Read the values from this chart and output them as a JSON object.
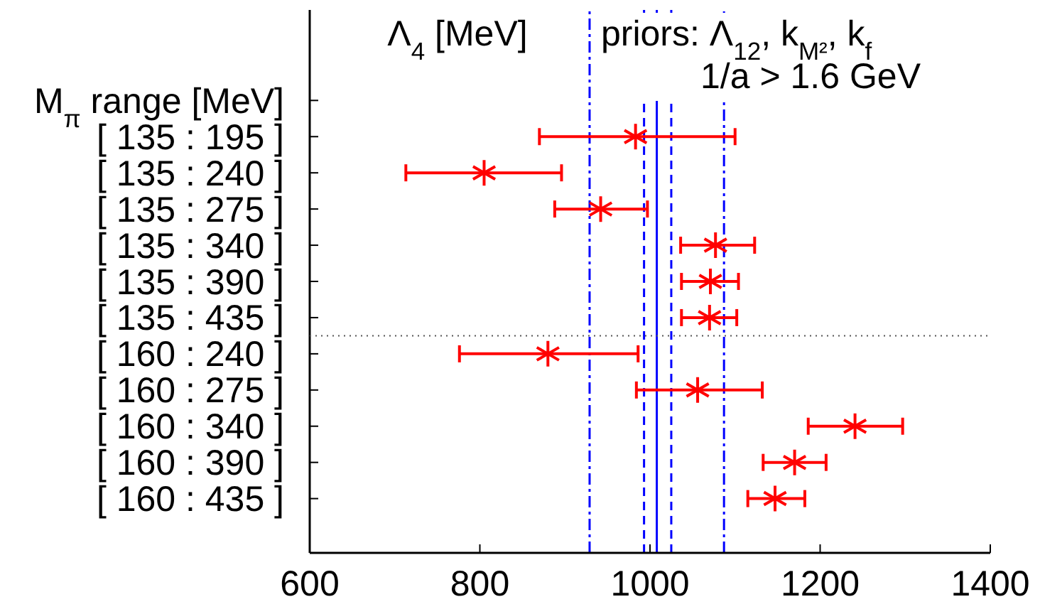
{
  "chart_data": {
    "type": "scatter",
    "orientation": "horizontal",
    "marker": "cross",
    "categories": [
      null,
      null,
      "M$_{π}$ range [MeV]",
      "[ 135 : 195 ]",
      "[ 135 : 240 ]",
      "[ 135 : 275 ]",
      "[ 135 : 340 ]",
      "[ 135 : 390 ]",
      "[ 135 : 435 ]",
      "[ 160 : 240 ]",
      "[ 160 : 275 ]",
      "[ 160 : 340 ]",
      "[ 160 : 390 ]",
      "[ 160 : 435 ]",
      null
    ],
    "series": [
      {
        "color": "#ff0000",
        "values": [
          null,
          null,
          null,
          983,
          805,
          942,
          1077,
          1071,
          1070,
          880,
          1056,
          1241,
          1170,
          1147,
          null
        ],
        "errors": [
          null,
          null,
          null,
          [
            870,
            1100
          ],
          [
            713,
            896
          ],
          [
            888,
            997
          ],
          [
            1036,
            1123
          ],
          [
            1037,
            1104
          ],
          [
            1037,
            1102
          ],
          [
            776,
            986
          ],
          [
            984,
            1132
          ],
          [
            1186,
            1297
          ],
          [
            1133,
            1207
          ],
          [
            1115,
            1182
          ],
          null
        ]
      }
    ],
    "xlim": [
      600,
      1400
    ],
    "xticks": [
      600,
      800,
      1000,
      1200,
      1400
    ],
    "ref_lines": [
      {
        "axis": "x",
        "value": 929,
        "color": "#0000ff",
        "line_style": "dashdot"
      },
      {
        "axis": "x",
        "value": 993,
        "color": "#0000ff",
        "line_style": "dashed"
      },
      {
        "axis": "x",
        "value": 1008,
        "color": "#0000ff",
        "line_style": "solid"
      },
      {
        "axis": "x",
        "value": 1025,
        "color": "#0000ff",
        "line_style": "dashed"
      },
      {
        "axis": "x",
        "value": 1087,
        "color": "#0000ff",
        "line_style": "dashdot"
      }
    ],
    "annotations": [
      "Λ$_{4}$ [MeV]",
      "priors: Λ$_{12}$, k$_{M²}$, k$_{f}$",
      "1/a > 1.6 GeV"
    ]
  }
}
